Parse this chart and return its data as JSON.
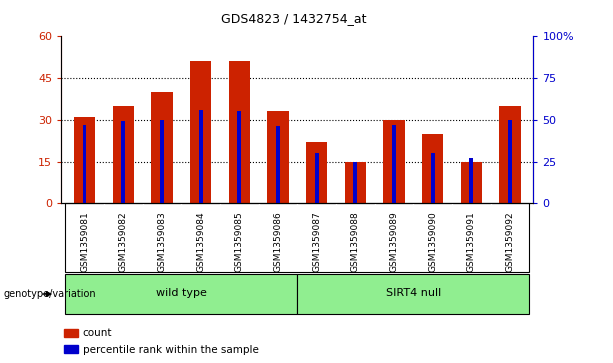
{
  "title": "GDS4823 / 1432754_at",
  "samples": [
    "GSM1359081",
    "GSM1359082",
    "GSM1359083",
    "GSM1359084",
    "GSM1359085",
    "GSM1359086",
    "GSM1359087",
    "GSM1359088",
    "GSM1359089",
    "GSM1359090",
    "GSM1359091",
    "GSM1359092"
  ],
  "counts": [
    31,
    35,
    40,
    51,
    51,
    33,
    22,
    15,
    30,
    25,
    15,
    35
  ],
  "percentile_ranks": [
    47,
    49,
    50,
    56,
    55,
    46,
    30,
    25,
    47,
    30,
    27,
    50
  ],
  "bar_color": "#CC2200",
  "percentile_color": "#0000CC",
  "left_ylim": [
    0,
    60
  ],
  "left_yticks": [
    0,
    15,
    30,
    45,
    60
  ],
  "right_ylim": [
    0,
    100
  ],
  "right_yticks": [
    0,
    25,
    50,
    75,
    100
  ],
  "groups": [
    {
      "label": "wild type",
      "start": 0,
      "end": 6,
      "color": "#90EE90"
    },
    {
      "label": "SIRT4 null",
      "start": 6,
      "end": 12,
      "color": "#90EE90"
    }
  ],
  "genotype_label": "genotype/variation",
  "legend_items": [
    {
      "label": "count",
      "color": "#CC2200"
    },
    {
      "label": "percentile rank within the sample",
      "color": "#0000CC"
    }
  ],
  "background_color": "#ffffff",
  "tick_label_area_color": "#cccccc",
  "title_fontsize": 9,
  "bar_width": 0.55,
  "pct_bar_width": 0.1
}
